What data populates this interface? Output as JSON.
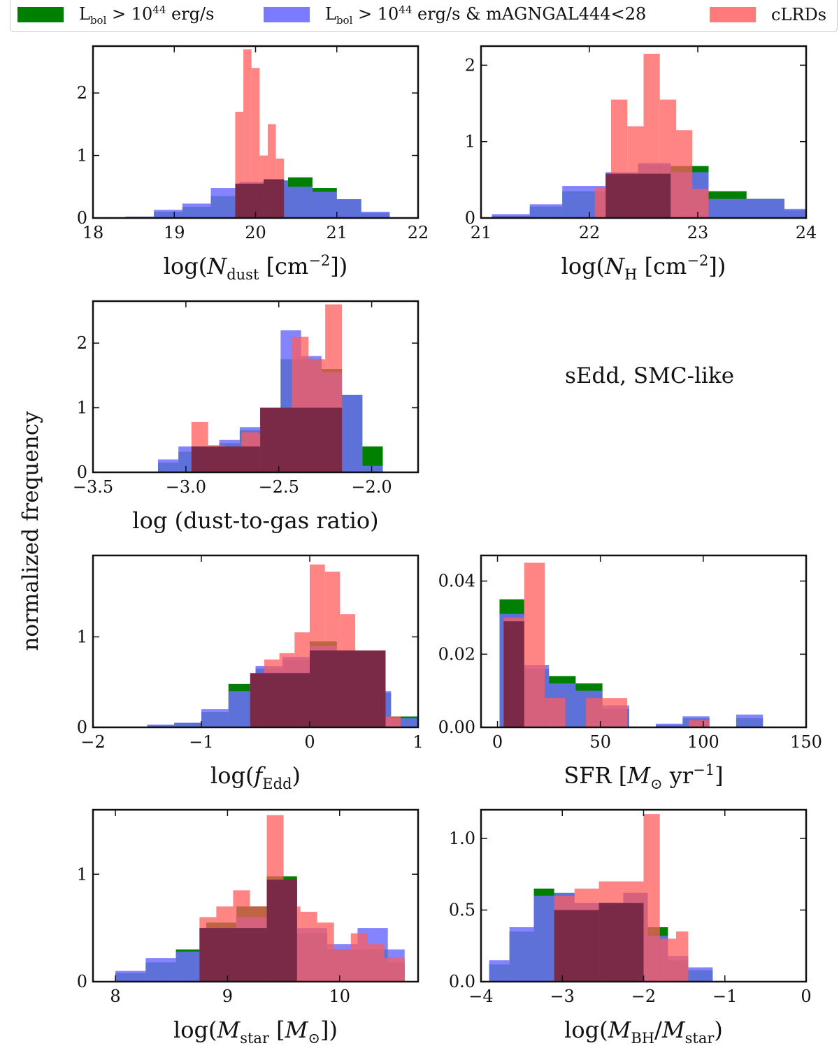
{
  "legend": {
    "green": {
      "text": "L_bol > 10^44 erg/s",
      "color": "#008000"
    },
    "blue": {
      "text": "L_bol > 10^44 erg/s & mAGNGAL444<28",
      "color": "#7b7bff"
    },
    "red": {
      "text": "cLRDs",
      "color": "#ff7b7b"
    }
  },
  "ylabel": "normalized frequency",
  "note": "sEdd, SMC-like",
  "chart_data": [
    {
      "id": "ndust",
      "type": "bar",
      "xlabel": "log(N_dust [cm^-2])",
      "xlim": [
        18,
        22
      ],
      "ylim": [
        0,
        2.75
      ],
      "xticks": [
        "18",
        "19",
        "20",
        "21",
        "22"
      ],
      "xtick_values": [
        18,
        19,
        20,
        21,
        22
      ],
      "yticks": [
        "0",
        "1",
        "2"
      ],
      "ytick_values": [
        0,
        1,
        2
      ],
      "series": [
        {
          "name": "L_bol > 10^44 erg/s",
          "edges": [
            18.4,
            18.75,
            19.1,
            19.45,
            19.8,
            20.1,
            20.4,
            20.7,
            21.0,
            21.3,
            21.65
          ],
          "values": [
            0.02,
            0.1,
            0.18,
            0.35,
            0.55,
            0.6,
            0.65,
            0.48,
            0.3,
            0.08
          ]
        },
        {
          "name": "L_bol > 10^44 erg/s & mAGNGAL444<28",
          "edges": [
            18.4,
            18.75,
            19.1,
            19.45,
            19.8,
            20.1,
            20.4,
            20.7,
            21.0,
            21.3,
            21.65
          ],
          "values": [
            0.02,
            0.13,
            0.23,
            0.48,
            0.58,
            0.6,
            0.5,
            0.42,
            0.3,
            0.1
          ]
        },
        {
          "name": "cLRDs",
          "edges": [
            19.75,
            19.85,
            19.95,
            20.05,
            20.15,
            20.25,
            20.35
          ],
          "values": [
            1.7,
            2.7,
            2.4,
            1.0,
            1.5,
            0.95
          ]
        },
        {
          "name": "overlap",
          "edges": [
            19.75,
            20.1,
            20.35
          ],
          "values": [
            0.55,
            0.62
          ]
        }
      ]
    },
    {
      "id": "nh",
      "type": "bar",
      "xlabel": "log(N_H [cm^-2])",
      "xlim": [
        21,
        24
      ],
      "ylim": [
        0,
        2.25
      ],
      "xticks": [
        "21",
        "22",
        "23",
        "24"
      ],
      "xtick_values": [
        21,
        22,
        23,
        24
      ],
      "yticks": [
        "0",
        "1",
        "2"
      ],
      "ytick_values": [
        0,
        1,
        2
      ],
      "series": [
        {
          "name": "L_bol > 10^44 erg/s",
          "edges": [
            21.1,
            21.45,
            21.75,
            22.15,
            22.45,
            22.75,
            23.1,
            23.45,
            23.8,
            24.0
          ],
          "values": [
            0.03,
            0.15,
            0.35,
            0.56,
            0.7,
            0.68,
            0.35,
            0.25,
            0.1
          ]
        },
        {
          "name": "L_bol > 10^44 erg/s & mAGNGAL444<28",
          "edges": [
            21.1,
            21.45,
            21.75,
            22.15,
            22.45,
            22.75,
            23.1,
            23.45,
            23.8,
            24.0
          ],
          "values": [
            0.05,
            0.18,
            0.42,
            0.6,
            0.72,
            0.6,
            0.25,
            0.25,
            0.12
          ]
        },
        {
          "name": "cLRDs",
          "edges": [
            22.05,
            22.2,
            22.35,
            22.5,
            22.65,
            22.8,
            22.95,
            23.1
          ],
          "values": [
            0.4,
            1.55,
            1.2,
            2.15,
            1.55,
            1.15,
            0.38
          ]
        },
        {
          "name": "overlap",
          "edges": [
            22.15,
            22.75,
            22.9
          ],
          "values": [
            0.58,
            0.0
          ]
        }
      ]
    },
    {
      "id": "dtg",
      "type": "bar",
      "xlabel": "log (dust-to-gas ratio)",
      "xlim": [
        -3.5,
        -1.75
      ],
      "ylim": [
        0,
        2.65
      ],
      "xticks": [
        "−3.5",
        "−3.0",
        "−2.5",
        "−2.0"
      ],
      "xtick_values": [
        -3.5,
        -3.0,
        -2.5,
        -2.0
      ],
      "yticks": [
        "0",
        "1",
        "2"
      ],
      "ytick_values": [
        0,
        1,
        2
      ],
      "series": [
        {
          "name": "L_bol > 10^44 erg/s",
          "edges": [
            -3.15,
            -3.04,
            -2.93,
            -2.82,
            -2.71,
            -2.6,
            -2.49,
            -2.38,
            -2.27,
            -2.16,
            -2.05,
            -1.94
          ],
          "values": [
            0.15,
            0.32,
            0.3,
            0.45,
            0.65,
            1.0,
            1.75,
            1.75,
            1.6,
            1.2,
            0.4
          ]
        },
        {
          "name": "L_bol > 10^44 erg/s & mAGNGAL444<28",
          "edges": [
            -3.15,
            -3.04,
            -2.93,
            -2.82,
            -2.71,
            -2.6,
            -2.49,
            -2.38,
            -2.27,
            -2.16,
            -2.05,
            -1.94
          ],
          "values": [
            0.2,
            0.4,
            0.35,
            0.5,
            0.7,
            1.0,
            2.2,
            1.8,
            1.55,
            1.2,
            0.1
          ]
        },
        {
          "name": "cLRDs",
          "edges": [
            -2.97,
            -2.88,
            -2.79,
            -2.7,
            -2.61,
            -2.52,
            -2.43,
            -2.34,
            -2.25,
            -2.16
          ],
          "values": [
            0.78,
            0.42,
            0.3,
            0.62,
            0.6,
            1.0,
            2.1,
            1.75,
            2.6,
            1.15
          ]
        },
        {
          "name": "overlap",
          "edges": [
            -2.97,
            -2.6,
            -2.16
          ],
          "values": [
            0.4,
            1.0
          ]
        }
      ]
    },
    {
      "id": "fedd",
      "type": "bar",
      "xlabel": "log(f_Edd)",
      "xlim": [
        -2,
        1
      ],
      "ylim": [
        0,
        1.9
      ],
      "xticks": [
        "−2",
        "−1",
        "0",
        "1"
      ],
      "xtick_values": [
        -2,
        -1,
        0,
        1
      ],
      "yticks": [
        "0",
        "1"
      ],
      "ytick_values": [
        0,
        1
      ],
      "series": [
        {
          "name": "L_bol > 10^44 erg/s",
          "edges": [
            -1.5,
            -1.25,
            -1.0,
            -0.75,
            -0.5,
            -0.25,
            0.0,
            0.25,
            0.5,
            0.75,
            1.0
          ],
          "values": [
            0.02,
            0.05,
            0.17,
            0.48,
            0.65,
            0.75,
            0.95,
            0.65,
            0.38,
            0.12
          ]
        },
        {
          "name": "L_bol > 10^44 erg/s & mAGNGAL444<28",
          "edges": [
            -1.5,
            -1.25,
            -1.0,
            -0.75,
            -0.5,
            -0.25,
            0.0,
            0.25,
            0.5,
            0.75,
            1.0
          ],
          "values": [
            0.03,
            0.05,
            0.2,
            0.4,
            0.68,
            0.78,
            0.9,
            0.7,
            0.4,
            0.1
          ]
        },
        {
          "name": "cLRDs",
          "edges": [
            -0.55,
            -0.42,
            -0.28,
            -0.14,
            0.0,
            0.14,
            0.28,
            0.42,
            0.56,
            0.7,
            0.84
          ],
          "values": [
            0.48,
            0.75,
            0.82,
            1.05,
            1.8,
            1.72,
            1.25,
            0.65,
            0.52,
            0.12
          ]
        },
        {
          "name": "overlap",
          "edges": [
            -0.55,
            0.0,
            0.7
          ],
          "values": [
            0.6,
            0.85
          ]
        }
      ]
    },
    {
      "id": "sfr",
      "type": "bar",
      "xlabel": "SFR [M_sun yr^-1]",
      "xlim": [
        -8,
        150
      ],
      "ylim": [
        0,
        0.047
      ],
      "xticks": [
        "0",
        "50",
        "100",
        "150"
      ],
      "xtick_values": [
        0,
        50,
        100,
        150
      ],
      "yticks": [
        "0.00",
        "0.02",
        "0.04"
      ],
      "ytick_values": [
        0,
        0.02,
        0.04
      ],
      "series": [
        {
          "name": "L_bol > 10^44 erg/s",
          "edges": [
            1,
            13,
            25,
            38,
            51,
            64,
            77,
            90,
            103,
            116,
            129
          ],
          "values": [
            0.035,
            0.016,
            0.014,
            0.012,
            0.005,
            0.0,
            0.0006,
            0.0025,
            0.0,
            0.0025
          ]
        },
        {
          "name": "L_bol > 10^44 erg/s & mAGNGAL444<28",
          "edges": [
            1,
            13,
            25,
            38,
            51,
            64,
            77,
            90,
            103,
            116,
            129
          ],
          "values": [
            0.031,
            0.017,
            0.012,
            0.01,
            0.006,
            0.0,
            0.001,
            0.003,
            0.0,
            0.0035
          ]
        },
        {
          "name": "cLRDs",
          "edges": [
            3,
            13,
            23,
            33,
            43,
            53,
            63,
            73,
            83,
            93,
            103
          ],
          "values": [
            0.03,
            0.045,
            0.008,
            0.0,
            0.008,
            0.008,
            0.0,
            0.0,
            0.0,
            0.002
          ]
        },
        {
          "name": "overlap",
          "edges": [
            3,
            13,
            23
          ],
          "values": [
            0.029,
            0.0
          ]
        }
      ]
    },
    {
      "id": "mstar",
      "type": "bar",
      "xlabel": "log(M_star [M_sun])",
      "xlim": [
        7.8,
        10.7
      ],
      "ylim": [
        0,
        1.6
      ],
      "xticks": [
        "8",
        "9",
        "10"
      ],
      "xtick_values": [
        8,
        9,
        10
      ],
      "yticks": [
        "0",
        "1"
      ],
      "ytick_values": [
        0,
        1
      ],
      "series": [
        {
          "name": "L_bol > 10^44 erg/s",
          "edges": [
            8.0,
            8.27,
            8.54,
            8.81,
            9.08,
            9.35,
            9.62,
            9.89,
            10.16,
            10.43,
            10.58
          ],
          "values": [
            0.08,
            0.18,
            0.3,
            0.55,
            0.7,
            0.98,
            0.45,
            0.3,
            0.3,
            0.18
          ]
        },
        {
          "name": "L_bol > 10^44 erg/s & mAGNGAL444<28",
          "edges": [
            8.0,
            8.27,
            8.54,
            8.81,
            9.08,
            9.35,
            9.62,
            9.89,
            10.16,
            10.43,
            10.58
          ],
          "values": [
            0.1,
            0.22,
            0.28,
            0.45,
            0.6,
            0.9,
            0.5,
            0.35,
            0.5,
            0.3
          ]
        },
        {
          "name": "cLRDs",
          "edges": [
            8.75,
            8.9,
            9.05,
            9.2,
            9.35,
            9.5,
            9.65,
            9.8,
            9.95,
            10.1,
            10.25,
            10.4,
            10.58
          ],
          "values": [
            0.6,
            0.7,
            0.85,
            0.7,
            1.55,
            0.7,
            0.65,
            0.55,
            0.3,
            0.45,
            0.35,
            0.22
          ]
        },
        {
          "name": "overlap",
          "edges": [
            8.75,
            9.35,
            9.62
          ],
          "values": [
            0.5,
            0.95
          ]
        }
      ]
    },
    {
      "id": "mbh",
      "type": "bar",
      "xlabel": "log(M_BH / M_star)",
      "xlim": [
        -4,
        0
      ],
      "ylim": [
        0,
        1.2
      ],
      "xticks": [
        "−4",
        "−3",
        "−2",
        "−1",
        "0"
      ],
      "xtick_values": [
        -4,
        -3,
        -2,
        -1,
        0
      ],
      "yticks": [
        "0.0",
        "0.5",
        "1.0"
      ],
      "ytick_values": [
        0,
        0.5,
        1.0
      ],
      "series": [
        {
          "name": "L_bol > 10^44 erg/s",
          "edges": [
            -3.9,
            -3.65,
            -3.35,
            -3.1,
            -2.85,
            -2.55,
            -2.25,
            -1.95,
            -1.7,
            -1.45,
            -1.15
          ],
          "values": [
            0.12,
            0.35,
            0.65,
            0.62,
            0.55,
            0.38,
            0.62,
            0.38,
            0.15,
            0.08
          ]
        },
        {
          "name": "L_bol > 10^44 erg/s & mAGNGAL444<28",
          "edges": [
            -3.9,
            -3.65,
            -3.35,
            -3.1,
            -2.85,
            -2.55,
            -2.25,
            -1.95,
            -1.7,
            -1.45,
            -1.15
          ],
          "values": [
            0.15,
            0.38,
            0.6,
            0.62,
            0.55,
            0.55,
            0.62,
            0.32,
            0.18,
            0.1
          ]
        },
        {
          "name": "cLRDs",
          "edges": [
            -3.1,
            -2.85,
            -2.55,
            -2.25,
            -2.0,
            -1.8,
            -1.6,
            -1.45
          ],
          "values": [
            0.6,
            0.65,
            0.7,
            0.7,
            1.17,
            0.3,
            0.35
          ]
        },
        {
          "name": "overlap",
          "edges": [
            -3.1,
            -2.55,
            -2.0
          ],
          "values": [
            0.5,
            0.55
          ]
        }
      ]
    }
  ]
}
